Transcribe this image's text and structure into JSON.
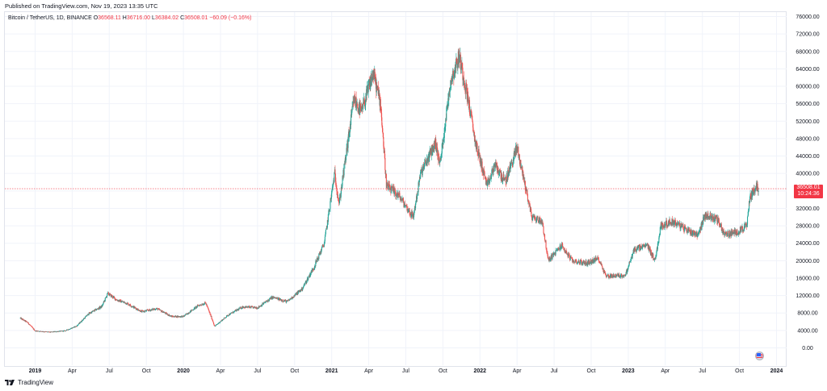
{
  "header": {
    "published": "Published on TradingView.com, Nov 19, 2023 13:35 UTC"
  },
  "legend": {
    "symbol": "Bitcoin / TetherUS, 1D, BINANCE",
    "open_label": "O",
    "open": "36568.11",
    "high_label": "H",
    "high": "36716.00",
    "low_label": "L",
    "low": "36384.02",
    "close_label": "C",
    "close": "36508.01",
    "change": "−60.09 (−0.16%)"
  },
  "price_tag": {
    "price": "36508.01",
    "countdown": "10:24:36"
  },
  "footer": {
    "brand": "TradingView"
  },
  "colors": {
    "up": "#26a69a",
    "down": "#ef5350",
    "grid": "#f0f3fa",
    "price_line": "#f23645"
  },
  "chart_data": {
    "type": "candlestick",
    "title": "Bitcoin / TetherUS, 1D, BINANCE",
    "ylim": [
      0,
      76000
    ],
    "y_ticks": [
      0,
      4000,
      8000,
      12000,
      16000,
      20000,
      24000,
      28000,
      32000,
      36000,
      40000,
      44000,
      48000,
      52000,
      56000,
      60000,
      64000,
      68000,
      72000,
      76000
    ],
    "y_tick_labels": [
      "0.00",
      "4000.00",
      "8000.00",
      "12000.00",
      "16000.00",
      "20000.00",
      "24000.00",
      "28000.00",
      "32000.00",
      "36000.00",
      "40000.00",
      "44000.00",
      "48000.00",
      "52000.00",
      "56000.00",
      "60000.00",
      "64000.00",
      "68000.00",
      "72000.00",
      "76000.00"
    ],
    "xlim": [
      2018.9,
      2024.1
    ],
    "x_ticks": [
      {
        "t": 2019.0,
        "label": "2019",
        "bold": true
      },
      {
        "t": 2019.25,
        "label": "Apr"
      },
      {
        "t": 2019.5,
        "label": "Jul"
      },
      {
        "t": 2019.75,
        "label": "Oct"
      },
      {
        "t": 2020.0,
        "label": "2020",
        "bold": true
      },
      {
        "t": 2020.25,
        "label": "Apr"
      },
      {
        "t": 2020.5,
        "label": "Jul"
      },
      {
        "t": 2020.75,
        "label": "Oct"
      },
      {
        "t": 2021.0,
        "label": "2021",
        "bold": true
      },
      {
        "t": 2021.25,
        "label": "Apr"
      },
      {
        "t": 2021.5,
        "label": "Jul"
      },
      {
        "t": 2021.75,
        "label": "Oct"
      },
      {
        "t": 2022.0,
        "label": "2022",
        "bold": true
      },
      {
        "t": 2022.25,
        "label": "Apr"
      },
      {
        "t": 2022.5,
        "label": "Jul"
      },
      {
        "t": 2022.75,
        "label": "Oct"
      },
      {
        "t": 2023.0,
        "label": "2023",
        "bold": true
      },
      {
        "t": 2023.25,
        "label": "Apr"
      },
      {
        "t": 2023.5,
        "label": "Jul"
      },
      {
        "t": 2023.75,
        "label": "Oct"
      },
      {
        "t": 2024.0,
        "label": "2024",
        "bold": true
      }
    ],
    "last_price": 36508.01,
    "price_path": [
      [
        2018.9,
        6800
      ],
      [
        2018.95,
        5800
      ],
      [
        2019.0,
        3900
      ],
      [
        2019.1,
        3600
      ],
      [
        2019.2,
        3900
      ],
      [
        2019.28,
        5000
      ],
      [
        2019.36,
        7800
      ],
      [
        2019.45,
        9500
      ],
      [
        2019.49,
        12500
      ],
      [
        2019.55,
        11000
      ],
      [
        2019.62,
        10200
      ],
      [
        2019.72,
        8300
      ],
      [
        2019.82,
        9000
      ],
      [
        2019.92,
        7200
      ],
      [
        2020.0,
        7200
      ],
      [
        2020.1,
        9700
      ],
      [
        2020.15,
        10300
      ],
      [
        2020.2,
        6000
      ],
      [
        2020.21,
        4900
      ],
      [
        2020.3,
        7500
      ],
      [
        2020.4,
        9400
      ],
      [
        2020.5,
        9200
      ],
      [
        2020.6,
        11600
      ],
      [
        2020.7,
        10600
      ],
      [
        2020.8,
        13500
      ],
      [
        2020.88,
        18500
      ],
      [
        2020.95,
        24000
      ],
      [
        2021.02,
        40000
      ],
      [
        2021.05,
        33000
      ],
      [
        2021.1,
        45000
      ],
      [
        2021.15,
        57000
      ],
      [
        2021.2,
        54000
      ],
      [
        2021.28,
        63000
      ],
      [
        2021.33,
        56000
      ],
      [
        2021.37,
        37000
      ],
      [
        2021.45,
        35000
      ],
      [
        2021.55,
        30000
      ],
      [
        2021.6,
        40000
      ],
      [
        2021.7,
        47000
      ],
      [
        2021.73,
        42000
      ],
      [
        2021.8,
        61000
      ],
      [
        2021.86,
        67000
      ],
      [
        2021.92,
        57000
      ],
      [
        2021.97,
        47000
      ],
      [
        2022.05,
        37000
      ],
      [
        2022.1,
        42000
      ],
      [
        2022.17,
        38000
      ],
      [
        2022.25,
        46000
      ],
      [
        2022.3,
        38000
      ],
      [
        2022.35,
        30000
      ],
      [
        2022.42,
        29000
      ],
      [
        2022.46,
        20000
      ],
      [
        2022.55,
        23500
      ],
      [
        2022.62,
        20000
      ],
      [
        2022.72,
        19400
      ],
      [
        2022.8,
        20500
      ],
      [
        2022.85,
        16500
      ],
      [
        2022.98,
        16600
      ],
      [
        2023.04,
        22500
      ],
      [
        2023.13,
        23500
      ],
      [
        2023.18,
        20000
      ],
      [
        2023.22,
        28000
      ],
      [
        2023.3,
        29000
      ],
      [
        2023.4,
        27000
      ],
      [
        2023.47,
        26000
      ],
      [
        2023.52,
        30500
      ],
      [
        2023.6,
        29500
      ],
      [
        2023.65,
        26000
      ],
      [
        2023.73,
        26500
      ],
      [
        2023.8,
        28000
      ],
      [
        2023.82,
        34500
      ],
      [
        2023.86,
        37000
      ],
      [
        2023.88,
        36508
      ]
    ]
  }
}
